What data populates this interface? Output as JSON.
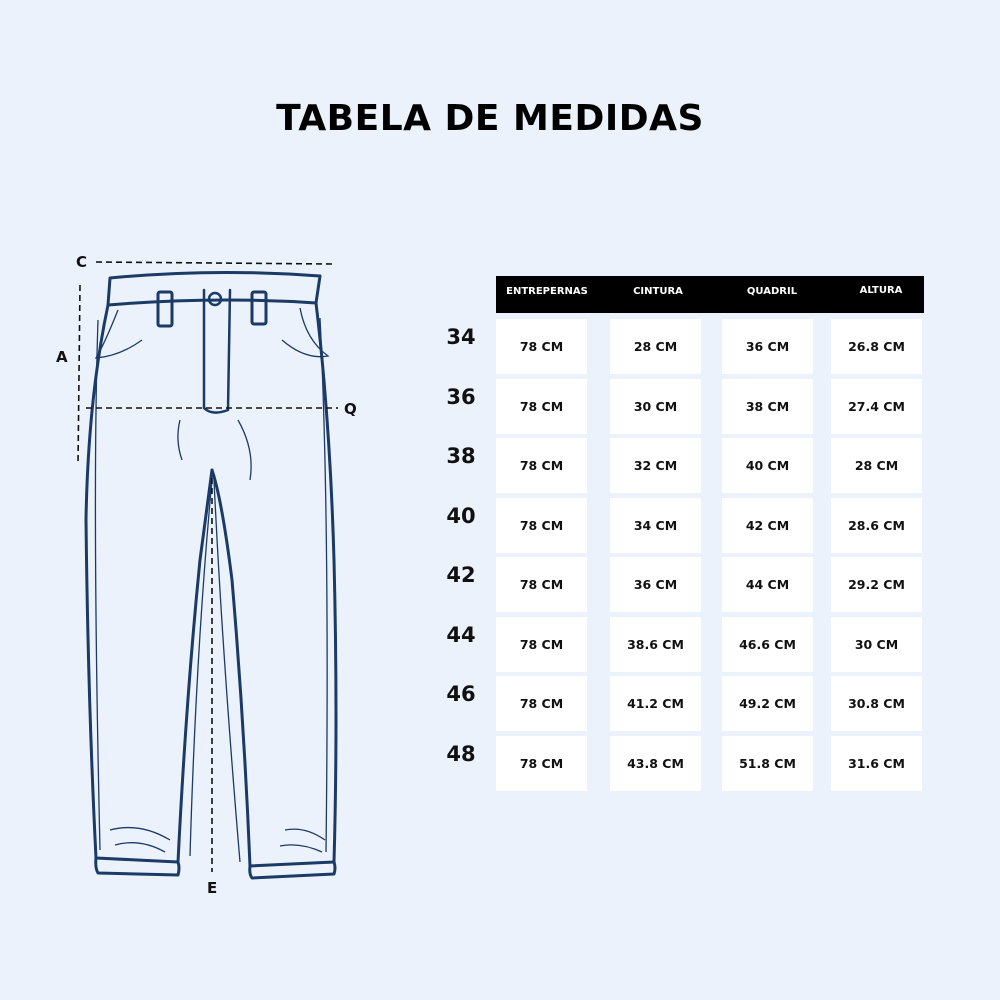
{
  "title": "TABELA DE MEDIDAS",
  "diagram": {
    "labels": {
      "c": "C",
      "a": "A",
      "q": "Q",
      "e": "E"
    },
    "line_color": "#1b3a66"
  },
  "table": {
    "headers": [
      "ENTREPERNAS",
      "CINTURA",
      "QUADRIL",
      "ALTURA"
    ],
    "rows": [
      {
        "size": "34",
        "values": [
          "78 CM",
          "28 CM",
          "36 CM",
          "26.8 CM"
        ]
      },
      {
        "size": "36",
        "values": [
          "78 CM",
          "30 CM",
          "38 CM",
          "27.4 CM"
        ]
      },
      {
        "size": "38",
        "values": [
          "78 CM",
          "32 CM",
          "40 CM",
          "28 CM"
        ]
      },
      {
        "size": "40",
        "values": [
          "78 CM",
          "34 CM",
          "42 CM",
          "28.6 CM"
        ]
      },
      {
        "size": "42",
        "values": [
          "78 CM",
          "36 CM",
          "44  CM",
          "29.2 CM"
        ]
      },
      {
        "size": "44",
        "values": [
          "78 CM",
          "38.6 CM",
          "46.6 CM",
          "30 CM"
        ]
      },
      {
        "size": "46",
        "values": [
          "78 CM",
          "41.2 CM",
          "49.2 CM",
          "30.8 CM"
        ]
      },
      {
        "size": "48",
        "values": [
          "78 CM",
          "43.8 CM",
          "51.8 CM",
          "31.6 CM"
        ]
      }
    ]
  }
}
